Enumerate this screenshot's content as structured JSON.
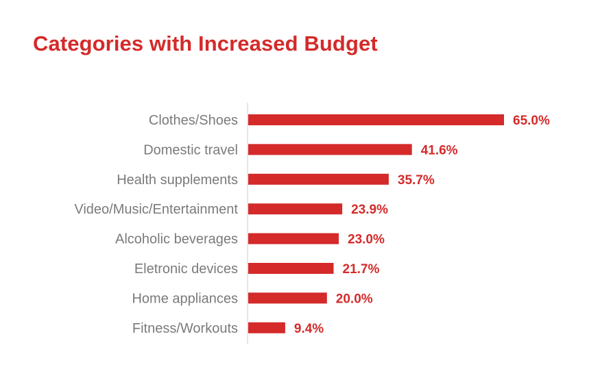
{
  "colors": {
    "title": "#d42a2a",
    "bar": "#d42a2a",
    "value_label": "#d42a2a",
    "category_label": "#7a7a7a",
    "axis_line": "#cccccc"
  },
  "chart_data": {
    "type": "bar",
    "orientation": "horizontal",
    "title": "Categories with Increased Budget",
    "xlabel": "",
    "ylabel": "",
    "xlim": [
      0,
      65
    ],
    "grid": false,
    "legend": "none",
    "categories": [
      "Clothes/Shoes",
      "Domestic travel",
      "Health supplements",
      "Video/Music/Entertainment",
      "Alcoholic beverages",
      "Eletronic devices",
      "Home appliances",
      "Fitness/Workouts"
    ],
    "values": [
      65.0,
      41.6,
      35.7,
      23.9,
      23.0,
      21.7,
      20.0,
      9.4
    ],
    "value_labels": [
      "65.0%",
      "41.6%",
      "35.7%",
      "23.9%",
      "23.0%",
      "21.7%",
      "20.0%",
      "9.4%"
    ]
  }
}
